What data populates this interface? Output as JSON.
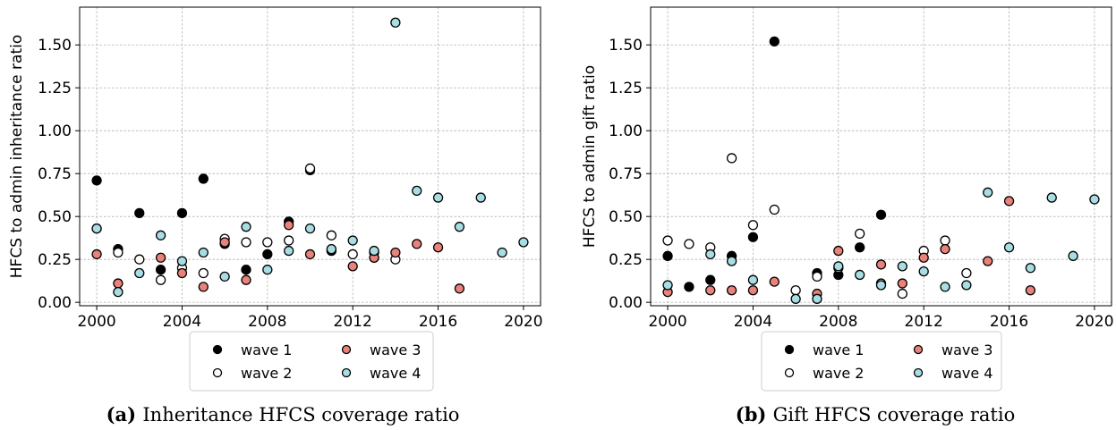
{
  "colors": {
    "wave1": "#000000",
    "wave2": "#ffffff",
    "wave3": "#e8827a",
    "wave4": "#a8dde4",
    "grid": "#b0b0b0"
  },
  "chart_data": [
    {
      "type": "scatter",
      "ylabel": "HFCS to admin inheritance ratio",
      "caption_prefix": "(a)",
      "caption": "Inheritance HFCS coverage ratio",
      "xlim": [
        1999.2,
        2020.8
      ],
      "ylim": [
        -0.02,
        1.72
      ],
      "xticks": [
        2000,
        2004,
        2008,
        2012,
        2016,
        2020
      ],
      "yticks": [
        0.0,
        0.25,
        0.5,
        0.75,
        1.0,
        1.25,
        1.5
      ],
      "ytick_labels": [
        "0.00",
        "0.25",
        "0.50",
        "0.75",
        "1.00",
        "1.25",
        "1.50"
      ],
      "grid": true,
      "legend_position": "bottom-center",
      "series": [
        {
          "name": "wave 1",
          "points": [
            [
              2000,
              0.71
            ],
            [
              2001,
              0.31
            ],
            [
              2002,
              0.52
            ],
            [
              2003,
              0.19
            ],
            [
              2004,
              0.52
            ],
            [
              2005,
              0.72
            ],
            [
              2006,
              0.34
            ],
            [
              2007,
              0.19
            ],
            [
              2008,
              0.28
            ],
            [
              2009,
              0.47
            ],
            [
              2010,
              0.77
            ],
            [
              2011,
              0.3
            ],
            [
              2013,
              0.26
            ]
          ]
        },
        {
          "name": "wave 2",
          "points": [
            [
              2000,
              0.43
            ],
            [
              2001,
              0.29
            ],
            [
              2002,
              0.25
            ],
            [
              2003,
              0.13
            ],
            [
              2004,
              0.2
            ],
            [
              2005,
              0.17
            ],
            [
              2006,
              0.37
            ],
            [
              2007,
              0.35
            ],
            [
              2008,
              0.35
            ],
            [
              2009,
              0.36
            ],
            [
              2010,
              0.78
            ],
            [
              2011,
              0.39
            ],
            [
              2012,
              0.28
            ],
            [
              2013,
              0.29
            ],
            [
              2014,
              0.25
            ]
          ]
        },
        {
          "name": "wave 3",
          "points": [
            [
              2000,
              0.28
            ],
            [
              2001,
              0.11
            ],
            [
              2003,
              0.26
            ],
            [
              2004,
              0.17
            ],
            [
              2005,
              0.09
            ],
            [
              2006,
              0.35
            ],
            [
              2007,
              0.13
            ],
            [
              2009,
              0.45
            ],
            [
              2010,
              0.28
            ],
            [
              2012,
              0.21
            ],
            [
              2013,
              0.26
            ],
            [
              2014,
              0.29
            ],
            [
              2015,
              0.34
            ],
            [
              2016,
              0.32
            ],
            [
              2017,
              0.08
            ]
          ]
        },
        {
          "name": "wave 4",
          "points": [
            [
              2000,
              0.43
            ],
            [
              2001,
              0.06
            ],
            [
              2002,
              0.17
            ],
            [
              2003,
              0.39
            ],
            [
              2004,
              0.24
            ],
            [
              2005,
              0.29
            ],
            [
              2006,
              0.15
            ],
            [
              2007,
              0.44
            ],
            [
              2008,
              0.19
            ],
            [
              2009,
              0.3
            ],
            [
              2010,
              0.43
            ],
            [
              2011,
              0.31
            ],
            [
              2012,
              0.36
            ],
            [
              2013,
              0.3
            ],
            [
              2014,
              1.63
            ],
            [
              2015,
              0.65
            ],
            [
              2016,
              0.61
            ],
            [
              2017,
              0.44
            ],
            [
              2018,
              0.61
            ],
            [
              2019,
              0.29
            ],
            [
              2020,
              0.35
            ]
          ]
        }
      ]
    },
    {
      "type": "scatter",
      "ylabel": "HFCS to admin gift ratio",
      "caption_prefix": "(b)",
      "caption": "Gift HFCS coverage ratio",
      "xlim": [
        1999.2,
        2020.8
      ],
      "ylim": [
        -0.02,
        1.72
      ],
      "xticks": [
        2000,
        2004,
        2008,
        2012,
        2016,
        2020
      ],
      "yticks": [
        0.0,
        0.25,
        0.5,
        0.75,
        1.0,
        1.25,
        1.5
      ],
      "ytick_labels": [
        "0.00",
        "0.25",
        "0.50",
        "0.75",
        "1.00",
        "1.25",
        "1.50"
      ],
      "grid": true,
      "legend_position": "bottom-center",
      "series": [
        {
          "name": "wave 1",
          "points": [
            [
              2000,
              0.27
            ],
            [
              2001,
              0.09
            ],
            [
              2002,
              0.13
            ],
            [
              2003,
              0.27
            ],
            [
              2004,
              0.38
            ],
            [
              2005,
              1.52
            ],
            [
              2007,
              0.17
            ],
            [
              2008,
              0.16
            ],
            [
              2009,
              0.32
            ],
            [
              2010,
              0.51
            ]
          ]
        },
        {
          "name": "wave 2",
          "points": [
            [
              2000,
              0.36
            ],
            [
              2001,
              0.34
            ],
            [
              2002,
              0.32
            ],
            [
              2003,
              0.84
            ],
            [
              2004,
              0.45
            ],
            [
              2005,
              0.54
            ],
            [
              2006,
              0.07
            ],
            [
              2007,
              0.15
            ],
            [
              2008,
              0.2
            ],
            [
              2009,
              0.4
            ],
            [
              2010,
              0.11
            ],
            [
              2011,
              0.05
            ],
            [
              2012,
              0.3
            ],
            [
              2013,
              0.36
            ],
            [
              2014,
              0.17
            ]
          ]
        },
        {
          "name": "wave 3",
          "points": [
            [
              2000,
              0.06
            ],
            [
              2002,
              0.07
            ],
            [
              2003,
              0.07
            ],
            [
              2004,
              0.07
            ],
            [
              2005,
              0.12
            ],
            [
              2007,
              0.05
            ],
            [
              2008,
              0.3
            ],
            [
              2010,
              0.22
            ],
            [
              2011,
              0.11
            ],
            [
              2012,
              0.26
            ],
            [
              2013,
              0.31
            ],
            [
              2015,
              0.24
            ],
            [
              2016,
              0.59
            ],
            [
              2017,
              0.07
            ]
          ]
        },
        {
          "name": "wave 4",
          "points": [
            [
              2000,
              0.1
            ],
            [
              2002,
              0.28
            ],
            [
              2003,
              0.24
            ],
            [
              2004,
              0.13
            ],
            [
              2006,
              0.02
            ],
            [
              2007,
              0.02
            ],
            [
              2008,
              0.21
            ],
            [
              2009,
              0.16
            ],
            [
              2010,
              0.1
            ],
            [
              2011,
              0.21
            ],
            [
              2012,
              0.18
            ],
            [
              2013,
              0.09
            ],
            [
              2014,
              0.1
            ],
            [
              2015,
              0.64
            ],
            [
              2016,
              0.32
            ],
            [
              2017,
              0.2
            ],
            [
              2018,
              0.61
            ],
            [
              2019,
              0.27
            ],
            [
              2020,
              0.6
            ]
          ]
        }
      ]
    }
  ]
}
